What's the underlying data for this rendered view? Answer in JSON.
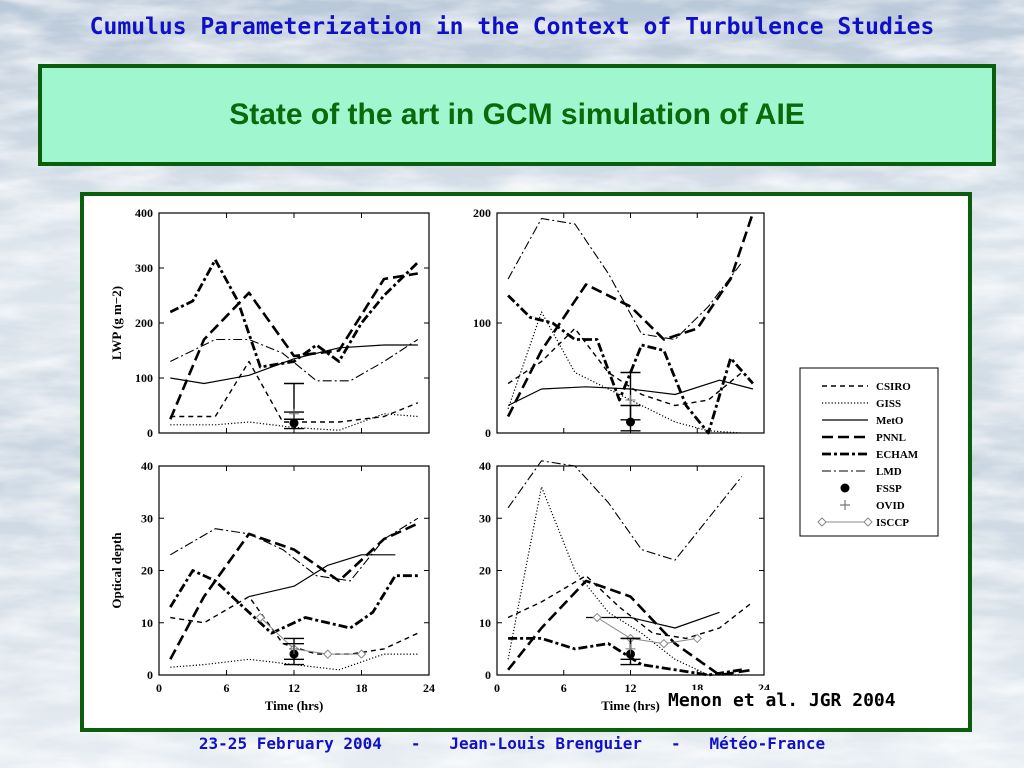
{
  "header": {
    "top_title": "Cumulus Parameterization in the Context of Turbulence Studies",
    "banner_title": "State of the art in GCM simulation of AIE"
  },
  "citation": "Menon et al. JGR 2004",
  "footer": {
    "date": "23-25 February 2004",
    "sep1": "-",
    "author": "Jean-Louis Brenguier",
    "sep2": "-",
    "org": "Météo-France"
  },
  "colors": {
    "title_blue": "#1010c8",
    "banner_green": "#9ff6cf",
    "border_green": "#0b5e0b",
    "banner_text": "#0a6a0a"
  },
  "legend": [
    {
      "key": "CSIRO",
      "label": "CSIRO",
      "dash": "5,4",
      "width": 1.4,
      "marker": "none"
    },
    {
      "key": "GISS",
      "label": "GISS",
      "dash": "1.2,2",
      "width": 1.2,
      "marker": "none"
    },
    {
      "key": "MetO",
      "label": "MetO",
      "dash": "",
      "width": 1.2,
      "marker": "none"
    },
    {
      "key": "PNNL",
      "label": "PNNL",
      "dash": "11,5",
      "width": 2.6,
      "marker": "none"
    },
    {
      "key": "ECHAM",
      "label": "ECHAM",
      "dash": "9,3,3,3",
      "width": 2.8,
      "marker": "none"
    },
    {
      "key": "LMD",
      "label": "LMD",
      "dash": "9,3,2,3",
      "width": 1.1,
      "marker": "none"
    },
    {
      "key": "FSSP",
      "label": "FSSP",
      "dash": "",
      "width": 0,
      "marker": "dot"
    },
    {
      "key": "OVID",
      "label": "OVID",
      "dash": "",
      "width": 0,
      "marker": "plus"
    },
    {
      "key": "ISCCP",
      "label": "ISCCP",
      "dash": "",
      "width": 1.0,
      "marker": "diamond-line"
    }
  ],
  "chart_data": [
    {
      "type": "line",
      "id": "lwp-left",
      "ylabel": "LWP (g m−2)",
      "xlabel": "",
      "xlim": [
        0,
        24
      ],
      "ylim": [
        0,
        400
      ],
      "xticks": [],
      "yticks": [
        0,
        100,
        200,
        300,
        400
      ],
      "series": [
        {
          "name": "CSIRO",
          "x": [
            1,
            5,
            8,
            11,
            16,
            20,
            23
          ],
          "y": [
            30,
            30,
            130,
            20,
            20,
            30,
            55
          ]
        },
        {
          "name": "GISS",
          "x": [
            1,
            5,
            8,
            12,
            16,
            20,
            23
          ],
          "y": [
            15,
            15,
            20,
            10,
            5,
            35,
            30
          ]
        },
        {
          "name": "MetO",
          "x": [
            1,
            4,
            8,
            12,
            16,
            20,
            23
          ],
          "y": [
            100,
            90,
            105,
            135,
            155,
            160,
            160
          ]
        },
        {
          "name": "PNNL",
          "x": [
            1,
            4,
            8,
            12,
            16,
            20,
            23
          ],
          "y": [
            25,
            170,
            255,
            140,
            150,
            280,
            290
          ]
        },
        {
          "name": "ECHAM",
          "x": [
            1,
            3,
            5,
            7,
            9,
            12,
            14,
            16,
            18,
            20,
            23
          ],
          "y": [
            220,
            240,
            315,
            240,
            120,
            130,
            160,
            130,
            200,
            250,
            310
          ]
        },
        {
          "name": "LMD",
          "x": [
            1,
            5,
            8,
            11,
            14,
            17,
            20,
            23
          ],
          "y": [
            130,
            170,
            170,
            145,
            95,
            95,
            130,
            170
          ]
        }
      ],
      "observations": [
        {
          "name": "FSSP",
          "x": 12,
          "y": 18,
          "err": [
            8,
            38
          ]
        },
        {
          "name": "OVID",
          "x": 12,
          "y": 35,
          "err": [
            25,
            90
          ]
        }
      ]
    },
    {
      "type": "line",
      "id": "lwp-right",
      "ylabel": "",
      "xlabel": "",
      "xlim": [
        0,
        24
      ],
      "ylim": [
        0,
        200
      ],
      "xticks": [],
      "yticks": [
        0,
        100,
        200
      ],
      "series": [
        {
          "name": "CSIRO",
          "x": [
            1,
            4,
            7,
            10,
            13,
            16,
            19,
            22
          ],
          "y": [
            45,
            65,
            95,
            55,
            35,
            25,
            30,
            55
          ]
        },
        {
          "name": "GISS",
          "x": [
            1,
            4,
            7,
            10,
            13,
            16,
            19,
            22
          ],
          "y": [
            22,
            110,
            55,
            40,
            25,
            10,
            2,
            0
          ]
        },
        {
          "name": "MetO",
          "x": [
            1,
            4,
            8,
            12,
            16,
            20,
            23
          ],
          "y": [
            25,
            40,
            42,
            40,
            35,
            48,
            40
          ]
        },
        {
          "name": "PNNL",
          "x": [
            1,
            4,
            8,
            12,
            15,
            18,
            21,
            23
          ],
          "y": [
            15,
            75,
            135,
            115,
            85,
            95,
            140,
            200
          ]
        },
        {
          "name": "ECHAM",
          "x": [
            1,
            3,
            5,
            7,
            9,
            11,
            13,
            15,
            17,
            19,
            21,
            23
          ],
          "y": [
            125,
            105,
            100,
            85,
            85,
            30,
            80,
            75,
            25,
            0,
            68,
            45
          ]
        },
        {
          "name": "LMD",
          "x": [
            1,
            4,
            7,
            10,
            13,
            16,
            19,
            22
          ],
          "y": [
            140,
            195,
            190,
            145,
            90,
            85,
            115,
            155
          ]
        }
      ],
      "observations": [
        {
          "name": "FSSP",
          "x": 12,
          "y": 10,
          "err": [
            2,
            25
          ]
        },
        {
          "name": "OVID",
          "x": 12,
          "y": 30,
          "err": [
            12,
            55
          ]
        }
      ]
    },
    {
      "type": "line",
      "id": "tau-left",
      "ylabel": "Optical depth",
      "xlabel": "Time (hrs)",
      "xlim": [
        0,
        24
      ],
      "ylim": [
        0,
        40
      ],
      "xticks": [
        0,
        6,
        12,
        18,
        24
      ],
      "yticks": [
        0,
        10,
        20,
        30,
        40
      ],
      "series": [
        {
          "name": "CSIRO",
          "x": [
            1,
            4,
            8,
            11,
            14,
            17,
            20,
            23
          ],
          "y": [
            11,
            10,
            15,
            6,
            4,
            4,
            5,
            8
          ]
        },
        {
          "name": "GISS",
          "x": [
            1,
            4,
            8,
            12,
            16,
            20,
            23
          ],
          "y": [
            1.5,
            2,
            3,
            2,
            1,
            4,
            4
          ]
        },
        {
          "name": "MetO",
          "x": [
            8,
            12,
            15,
            18,
            21
          ],
          "y": [
            15,
            17,
            21,
            23,
            23
          ]
        },
        {
          "name": "PNNL",
          "x": [
            1,
            4,
            8,
            12,
            16,
            20,
            23
          ],
          "y": [
            3,
            15,
            27,
            24,
            18,
            26,
            29
          ]
        },
        {
          "name": "ECHAM",
          "x": [
            1,
            3,
            5,
            7,
            10,
            13,
            15,
            17,
            19,
            21,
            23
          ],
          "y": [
            13,
            20,
            18,
            14,
            8,
            11,
            10,
            9,
            12,
            19,
            19
          ]
        },
        {
          "name": "LMD",
          "x": [
            1,
            5,
            8,
            11,
            14,
            17,
            20,
            23
          ],
          "y": [
            23,
            28,
            27,
            24,
            19,
            18,
            26,
            30
          ]
        }
      ],
      "observations": [
        {
          "name": "FSSP",
          "x": 12,
          "y": 4,
          "err": [
            2,
            6
          ]
        },
        {
          "name": "OVID",
          "x": 12,
          "y": 5,
          "err": [
            3,
            7
          ]
        }
      ],
      "isccp": {
        "x": [
          9,
          12,
          15,
          18
        ],
        "y": [
          11,
          5,
          4,
          4
        ]
      }
    },
    {
      "type": "line",
      "id": "tau-right",
      "ylabel": "",
      "xlabel": "Time (hrs)",
      "xlim": [
        0,
        24
      ],
      "ylim": [
        0,
        40
      ],
      "xticks": [
        0,
        6,
        12,
        18,
        24
      ],
      "yticks": [
        0,
        10,
        20,
        30,
        40
      ],
      "series": [
        {
          "name": "CSIRO",
          "x": [
            1,
            4,
            8,
            11,
            14,
            17,
            20,
            23
          ],
          "y": [
            11,
            14,
            19,
            13,
            8,
            7,
            9,
            14
          ]
        },
        {
          "name": "GISS",
          "x": [
            1,
            4,
            7,
            10,
            13,
            16,
            19,
            22
          ],
          "y": [
            3,
            36,
            20,
            12,
            8,
            3,
            0,
            0
          ]
        },
        {
          "name": "MetO",
          "x": [
            8,
            12,
            16,
            20
          ],
          "y": [
            11,
            11,
            9,
            12
          ]
        },
        {
          "name": "PNNL",
          "x": [
            1,
            4,
            8,
            12,
            16,
            20,
            23
          ],
          "y": [
            1,
            9,
            18,
            15,
            6,
            0,
            1
          ]
        },
        {
          "name": "ECHAM",
          "x": [
            1,
            4,
            7,
            10,
            13,
            16,
            19,
            22
          ],
          "y": [
            7,
            7,
            5,
            6,
            2,
            1,
            0,
            1
          ]
        },
        {
          "name": "LMD",
          "x": [
            1,
            4,
            7,
            10,
            13,
            16,
            19,
            22
          ],
          "y": [
            32,
            41,
            40,
            33,
            24,
            22,
            30,
            38
          ]
        }
      ],
      "observations": [
        {
          "name": "FSSP",
          "x": 12,
          "y": 4,
          "err": [
            2,
            7
          ]
        },
        {
          "name": "OVID",
          "x": 12,
          "y": 5,
          "err": [
            3,
            7
          ]
        }
      ],
      "isccp": {
        "x": [
          9,
          12,
          15,
          18
        ],
        "y": [
          11,
          7,
          6,
          7
        ]
      }
    }
  ]
}
